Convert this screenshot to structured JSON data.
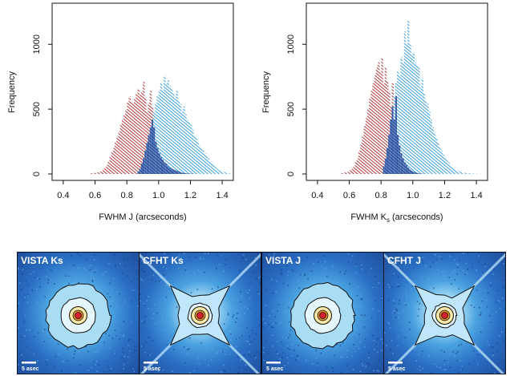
{
  "chart_data": [
    {
      "type": "bar",
      "xlabel": "FWHM J (arcseconds)",
      "ylabel": "Frequency",
      "xlim": [
        0.35,
        1.45
      ],
      "ylim": [
        0,
        1280
      ],
      "xticks": [
        "0.4",
        "0.6",
        "0.8",
        "1.0",
        "1.2",
        "1.4"
      ],
      "yticks": [
        "0",
        "500",
        "1000"
      ],
      "bin_start": 0.35,
      "bin_width": 0.011,
      "series": [
        {
          "color": "#b03535",
          "values": [
            0,
            0,
            0,
            0,
            0,
            0,
            0,
            0,
            0,
            0,
            0,
            0,
            0,
            0,
            0,
            0,
            0,
            0,
            0,
            0,
            5,
            5,
            8,
            10,
            12,
            18,
            25,
            35,
            50,
            70,
            100,
            130,
            170,
            200,
            250,
            290,
            330,
            380,
            420,
            460,
            500,
            560,
            600,
            560,
            540,
            580,
            620,
            660,
            610,
            640,
            710,
            590,
            480,
            550,
            640,
            520,
            360,
            250,
            200,
            160,
            130,
            110,
            90,
            80,
            60,
            50,
            40,
            35,
            30,
            25,
            20,
            15,
            10,
            8,
            5,
            4,
            3,
            2,
            2,
            1,
            1,
            0,
            0,
            0,
            0,
            0,
            0,
            0,
            0,
            0,
            0,
            0,
            0,
            0,
            0,
            0,
            0,
            0,
            0,
            0
          ]
        },
        {
          "color": "#3a9fe0",
          "values": [
            0,
            0,
            0,
            0,
            0,
            0,
            0,
            0,
            0,
            0,
            0,
            0,
            0,
            0,
            0,
            0,
            0,
            0,
            0,
            0,
            0,
            0,
            0,
            0,
            0,
            0,
            0,
            0,
            0,
            0,
            0,
            0,
            0,
            0,
            0,
            0,
            0,
            0,
            0,
            0,
            0,
            0,
            0,
            0,
            0,
            0,
            0,
            20,
            40,
            80,
            120,
            180,
            240,
            300,
            360,
            420,
            480,
            540,
            600,
            650,
            700,
            650,
            760,
            700,
            720,
            680,
            660,
            620,
            580,
            640,
            560,
            540,
            480,
            520,
            460,
            420,
            400,
            380,
            340,
            300,
            280,
            250,
            220,
            200,
            180,
            160,
            140,
            120,
            100,
            90,
            70,
            55,
            40,
            30,
            25,
            20,
            15,
            10,
            8,
            5
          ]
        }
      ]
    },
    {
      "type": "bar",
      "xlabel": "FWHM K",
      "xlabel_sub": "s",
      "xlabel_after": "(arcseconds)",
      "ylabel": "Frequency",
      "xlim": [
        0.35,
        1.45
      ],
      "ylim": [
        0,
        1280
      ],
      "xticks": [
        "0.4",
        "0.6",
        "0.8",
        "1.0",
        "1.2",
        "1.4"
      ],
      "yticks": [
        "0",
        "500",
        "1000"
      ],
      "bin_start": 0.35,
      "bin_width": 0.011,
      "series": [
        {
          "color": "#b03535",
          "values": [
            0,
            0,
            0,
            0,
            0,
            0,
            0,
            0,
            0,
            0,
            0,
            0,
            0,
            0,
            0,
            0,
            0,
            0,
            5,
            8,
            12,
            15,
            20,
            30,
            40,
            60,
            90,
            120,
            180,
            240,
            300,
            370,
            430,
            500,
            580,
            640,
            700,
            760,
            820,
            860,
            780,
            900,
            700,
            820,
            720,
            640,
            520,
            700,
            420,
            600,
            300,
            220,
            160,
            120,
            90,
            70,
            50,
            35,
            25,
            18,
            12,
            8,
            5,
            3,
            2,
            1,
            0,
            0,
            0,
            0,
            0,
            0,
            0,
            0,
            0,
            0,
            0,
            0,
            0,
            0,
            0,
            0,
            0,
            0,
            0,
            0,
            0,
            0,
            0,
            0,
            0,
            0,
            0,
            0,
            0,
            0,
            0,
            0,
            0,
            0
          ]
        },
        {
          "color": "#3a9fe0",
          "values": [
            0,
            0,
            0,
            0,
            0,
            0,
            0,
            0,
            0,
            0,
            0,
            0,
            0,
            0,
            0,
            0,
            0,
            0,
            0,
            0,
            0,
            0,
            0,
            0,
            0,
            0,
            0,
            0,
            0,
            0,
            0,
            0,
            0,
            0,
            0,
            0,
            0,
            0,
            0,
            0,
            0,
            0,
            60,
            120,
            200,
            300,
            420,
            520,
            600,
            700,
            800,
            760,
            900,
            860,
            1100,
            1000,
            1180,
            1000,
            920,
            940,
            860,
            840,
            820,
            660,
            740,
            620,
            560,
            540,
            480,
            420,
            360,
            320,
            280,
            240,
            210,
            180,
            150,
            130,
            110,
            90,
            70,
            55,
            45,
            35,
            28,
            20,
            15,
            12,
            10,
            8,
            6,
            5,
            4,
            3,
            2,
            2,
            1,
            1,
            0,
            0
          ]
        }
      ]
    }
  ],
  "panels": [
    {
      "title": "VISTA Ks",
      "scale_label": "5 asec"
    },
    {
      "title": "CFHT Ks",
      "scale_label": "5 asec"
    },
    {
      "title": "VISTA J",
      "scale_label": "5 asec"
    },
    {
      "title": "CFHT J",
      "scale_label": "5 asec"
    }
  ]
}
